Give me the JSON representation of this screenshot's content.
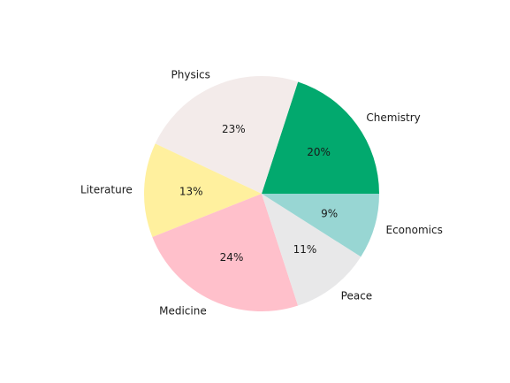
{
  "chart_data": {
    "type": "pie",
    "title": "",
    "start_angle_deg": 0,
    "direction": "counterclockwise",
    "slices": [
      {
        "label": "Chemistry",
        "value": 20,
        "pct_text": "20%",
        "color": "#02a96e"
      },
      {
        "label": "Physics",
        "value": 23,
        "pct_text": "23%",
        "color": "#f3ebea"
      },
      {
        "label": "Literature",
        "value": 13,
        "pct_text": "13%",
        "color": "#fff09e"
      },
      {
        "label": "Medicine",
        "value": 24,
        "pct_text": "24%",
        "color": "#ffc0cb"
      },
      {
        "label": "Peace",
        "value": 11,
        "pct_text": "11%",
        "color": "#e8e8e9"
      },
      {
        "label": "Economics",
        "value": 9,
        "pct_text": "9%",
        "color": "#98d6d3"
      }
    ]
  }
}
